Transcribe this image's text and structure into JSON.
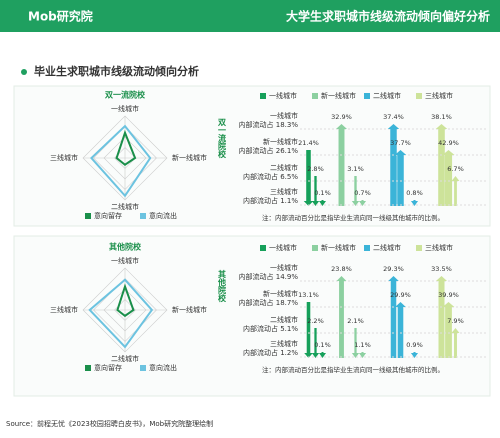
{
  "header": {
    "logo": "Mob研究院",
    "title": "大学生求职城市线级流动倾向偏好分析"
  },
  "section_title": "毕业生求职城市线级流动倾向分析",
  "source": "Source：前程无忧《2023校园招聘白皮书》，Mob研究院整理绘制",
  "chart_data": [
    {
      "type": "radar",
      "title": "双一流院校",
      "axes": [
        "一线城市",
        "新一线城市",
        "二线城市",
        "三线城市"
      ],
      "rlim": [
        0,
        50
      ],
      "series": [
        {
          "name": "意向留存",
          "color": "#1a8f4a",
          "values": [
            30,
            12,
            8,
            10
          ]
        },
        {
          "name": "意向流出",
          "color": "#6cc3e0",
          "values": [
            38,
            30,
            45,
            40
          ]
        }
      ]
    },
    {
      "type": "flow",
      "title": "双一流院校",
      "categories": [
        "一线城市",
        "新一线城市",
        "二线城市",
        "三线城市"
      ],
      "colors": [
        "#16a05a",
        "#8cd0a0",
        "#3bb4d8",
        "#cde39a"
      ],
      "internal_label": "内部流动占",
      "values": [
        [
          18.3,
          32.9,
          37.4,
          38.1
        ],
        [
          21.4,
          26.1,
          37.7,
          42.9
        ],
        [
          2.8,
          3.1,
          6.5,
          6.7
        ],
        [
          0.1,
          0.7,
          0.8,
          1.1
        ]
      ],
      "value_labels": [
        [
          "18.3%",
          "32.9%",
          "37.4%",
          "38.1%"
        ],
        [
          "21.4%",
          "26.1%",
          "37.7%",
          "42.9%"
        ],
        [
          "2.8%",
          "3.1%",
          "6.5%",
          "6.7%"
        ],
        [
          "0.1%",
          "0.7%",
          "0.8%",
          "1.1%"
        ]
      ],
      "note": "注：内部流动百分比是指毕业生流向同一线级其他城市的比例。"
    },
    {
      "type": "radar",
      "title": "其他院校",
      "axes": [
        "一线城市",
        "新一线城市",
        "二线城市",
        "三线城市"
      ],
      "rlim": [
        0,
        50
      ],
      "series": [
        {
          "name": "意向留存",
          "color": "#1a8f4a",
          "values": [
            28,
            10,
            7,
            9
          ]
        },
        {
          "name": "意向流出",
          "color": "#6cc3e0",
          "values": [
            36,
            32,
            44,
            42
          ]
        }
      ]
    },
    {
      "type": "flow",
      "title": "其他院校",
      "categories": [
        "一线城市",
        "新一线城市",
        "二线城市",
        "三线城市"
      ],
      "colors": [
        "#16a05a",
        "#8cd0a0",
        "#3bb4d8",
        "#cde39a"
      ],
      "internal_label": "内部流动占",
      "values": [
        [
          14.9,
          23.8,
          29.3,
          33.5
        ],
        [
          13.1,
          18.7,
          29.9,
          39.9
        ],
        [
          2.2,
          2.1,
          5.1,
          7.9
        ],
        [
          0.1,
          1.1,
          0.9,
          1.2
        ]
      ],
      "value_labels": [
        [
          "14.9%",
          "23.8%",
          "29.3%",
          "33.5%"
        ],
        [
          "13.1%",
          "18.7%",
          "29.9%",
          "39.9%"
        ],
        [
          "2.2%",
          "2.1%",
          "5.1%",
          "7.9%"
        ],
        [
          "0.1%",
          "1.1%",
          "0.9%",
          "1.2%"
        ]
      ],
      "note": "注：内部流动百分比是指毕业生流向同一线级其他城市的比例。"
    }
  ]
}
